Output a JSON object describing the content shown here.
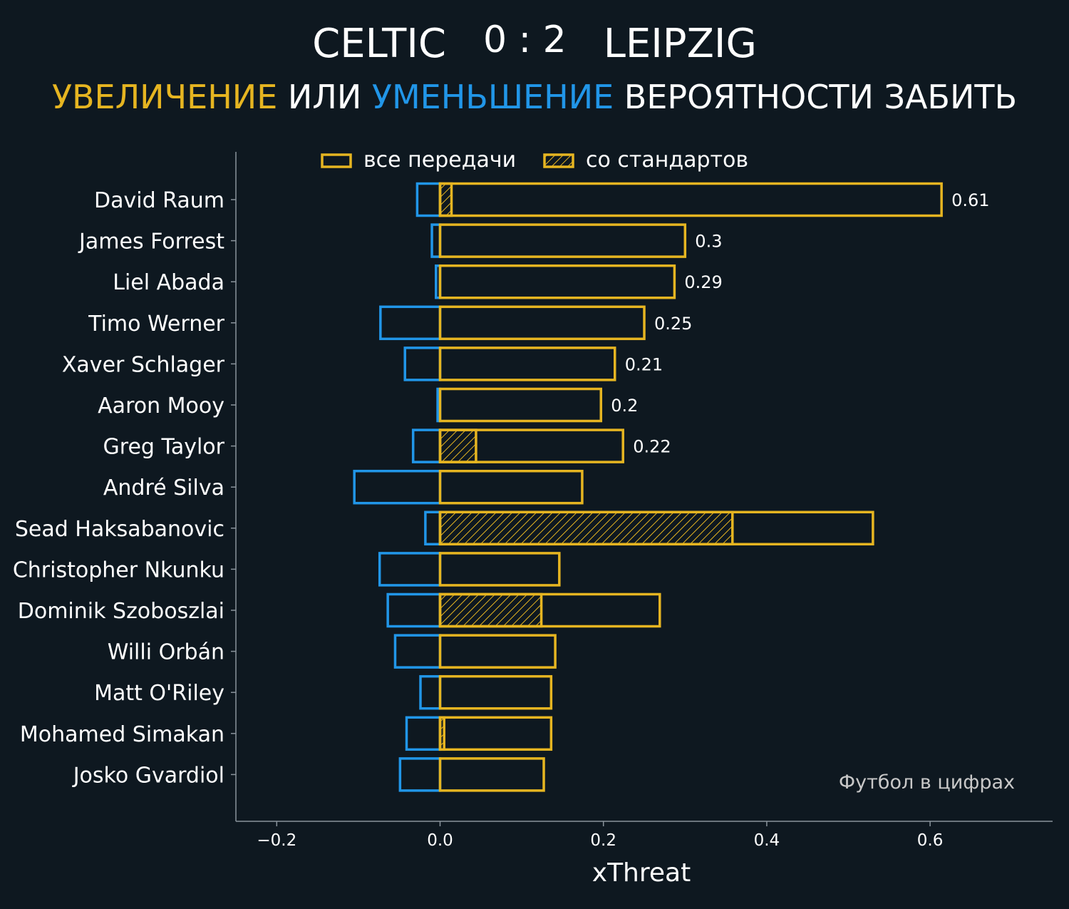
{
  "header": {
    "home_team": "CELTIC",
    "score": "0 : 2",
    "away_team": "LEIPZIG",
    "subtitle_part1": "УВЕЛИЧЕНИЕ",
    "subtitle_part2": " ИЛИ ",
    "subtitle_part3": "УМЕНЬШЕНИЕ",
    "subtitle_part4": " ВЕРОЯТНОСТИ ЗАБИТЬ"
  },
  "colors": {
    "background": "#0e1820",
    "increase": "#e6b521",
    "decrease": "#2196e8",
    "text": "#ffffff",
    "axis": "#8a949c",
    "watermark": "#c8c8c8"
  },
  "watermark": "Футбол в цифрах",
  "chart_data": {
    "type": "bar",
    "orientation": "horizontal",
    "xlabel": "xThreat",
    "ylabel": "",
    "xlim": [
      -0.25,
      0.75
    ],
    "xticks": [
      -0.2,
      0.0,
      0.2,
      0.4,
      0.6
    ],
    "xtick_labels": [
      "−0.2",
      "0.0",
      "0.2",
      "0.4",
      "0.6"
    ],
    "grid": false,
    "legend": {
      "placement": "top-center",
      "entries": [
        {
          "label": "все передачи",
          "style": "outline"
        },
        {
          "label": "со стандартов",
          "style": "hatched"
        }
      ]
    },
    "categories": [
      "David Raum",
      "James Forrest",
      "Liel Abada",
      "Timo Werner",
      "Xaver Schlager",
      "Aaron Mooy",
      "Greg Taylor",
      "André Silva",
      "Sead Haksabanovic",
      "Christopher Nkunku",
      "Dominik Szoboszlai",
      "Willi Orbán",
      "Matt O'Riley",
      "Mohamed Simakan",
      "Josko Gvardiol"
    ],
    "series": [
      {
        "name": "все передачи",
        "values": [
          0.614,
          0.3,
          0.287,
          0.25,
          0.214,
          0.197,
          0.224,
          0.174,
          0.53,
          0.146,
          0.269,
          0.141,
          0.136,
          0.136,
          0.127
        ]
      },
      {
        "name": "со стандартов",
        "values": [
          0.014,
          0,
          0,
          0,
          0,
          0,
          0.044,
          0,
          0.358,
          0,
          0.124,
          0,
          0,
          0.005,
          0
        ]
      },
      {
        "values": [
          -0.028,
          -0.01,
          -0.005,
          -0.073,
          -0.043,
          -0.003,
          -0.033,
          -0.105,
          -0.018,
          -0.074,
          -0.064,
          -0.055,
          -0.024,
          -0.041,
          -0.049
        ]
      }
    ],
    "data_labels": [
      "0.61",
      "0.3",
      "0.29",
      "0.25",
      "0.21",
      "0.2",
      "0.22",
      "",
      "",
      "",
      "",
      "",
      "",
      "",
      ""
    ]
  }
}
